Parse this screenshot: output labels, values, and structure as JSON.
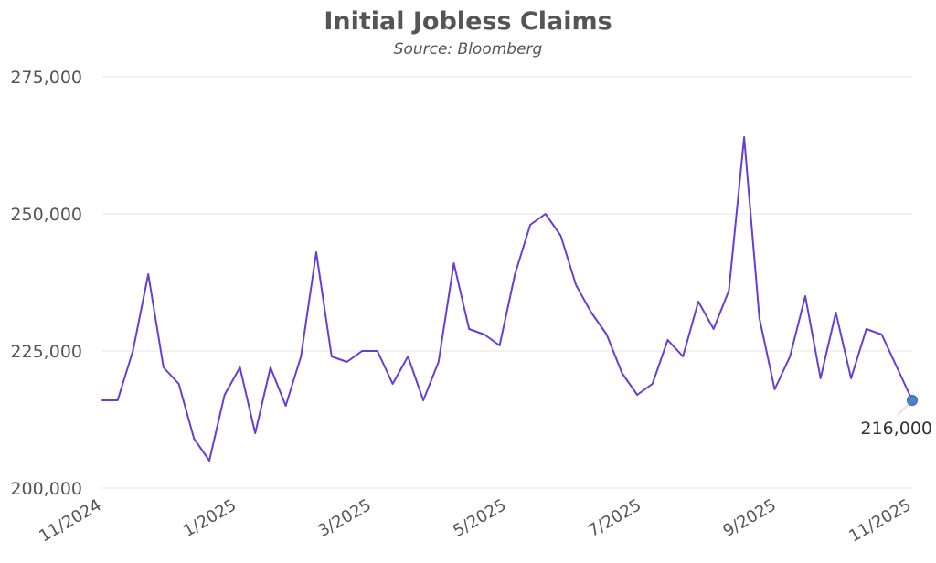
{
  "chart_data": {
    "type": "line",
    "title": "Initial Jobless Claims",
    "subtitle": "Source: Bloomberg",
    "xlabel": "",
    "ylabel": "",
    "ylim": [
      200000,
      275000
    ],
    "yticks": [
      "200,000",
      "225,000",
      "250,000",
      "275,000"
    ],
    "xticks": [
      "11/2024",
      "1/2025",
      "3/2025",
      "5/2025",
      "7/2025",
      "9/2025",
      "11/2025"
    ],
    "grid": true,
    "line_color": "#6a3cd6",
    "marker_color": "#4f7fd1",
    "end_label": "216,000",
    "series": [
      {
        "values": [
          216000,
          216000,
          225000,
          239000,
          222000,
          219000,
          209000,
          205000,
          217000,
          222000,
          210000,
          222000,
          215000,
          224000,
          243000,
          224000,
          223000,
          225000,
          225000,
          219000,
          224000,
          216000,
          223000,
          241000,
          229000,
          228000,
          226000,
          239000,
          248000,
          250000,
          246000,
          237000,
          232000,
          228000,
          221000,
          217000,
          219000,
          227000,
          224000,
          234000,
          229000,
          236000,
          264000,
          231000,
          218000,
          224000,
          235000,
          220000,
          232000,
          220000,
          229000,
          228000,
          222000,
          216000
        ]
      }
    ]
  }
}
